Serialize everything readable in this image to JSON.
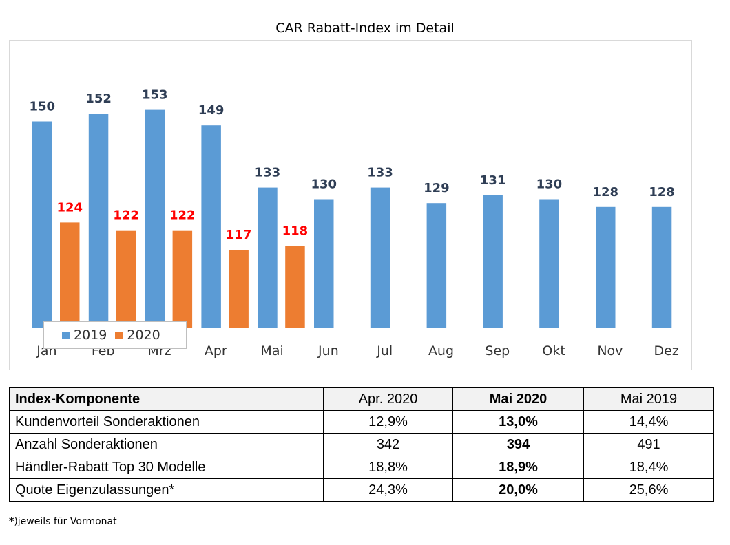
{
  "chart_data": {
    "type": "bar",
    "title": "CAR Rabatt-Index im Detail",
    "categories": [
      "Jan",
      "Feb",
      "Mrz",
      "Apr",
      "Mai",
      "Jun",
      "Jul",
      "Aug",
      "Sep",
      "Okt",
      "Nov",
      "Dez"
    ],
    "series": [
      {
        "name": "2019",
        "color": "#5b9bd5",
        "label_color": "#2f3e55",
        "values": [
          150,
          152,
          153,
          149,
          133,
          130,
          133,
          129,
          131,
          130,
          128,
          128
        ]
      },
      {
        "name": "2020",
        "color": "#ed7d31",
        "label_color": "#ff0000",
        "values": [
          124,
          122,
          122,
          117,
          118,
          null,
          null,
          null,
          null,
          null,
          null,
          null
        ]
      }
    ],
    "ylim": [
      97,
      160
    ],
    "legend_position": "bottom-left inside plot",
    "grid": false
  },
  "table": {
    "headers": [
      "Index-Komponente",
      "Apr. 2020",
      "Mai 2020",
      "Mai 2019"
    ],
    "rows": [
      [
        "Kundenvorteil Sonderaktionen",
        "12,9%",
        "13,0%",
        "14,4%"
      ],
      [
        "Anzahl Sonderaktionen",
        "342",
        "394",
        "491"
      ],
      [
        "Händler-Rabatt Top 30 Modelle",
        "18,8%",
        "18,9%",
        "18,4%"
      ],
      [
        "Quote Eigenzulassungen*",
        "24,3%",
        "20,0%",
        "25,6%"
      ]
    ]
  },
  "footnote_star": "*",
  "footnote": ")jeweils für Vormonat"
}
